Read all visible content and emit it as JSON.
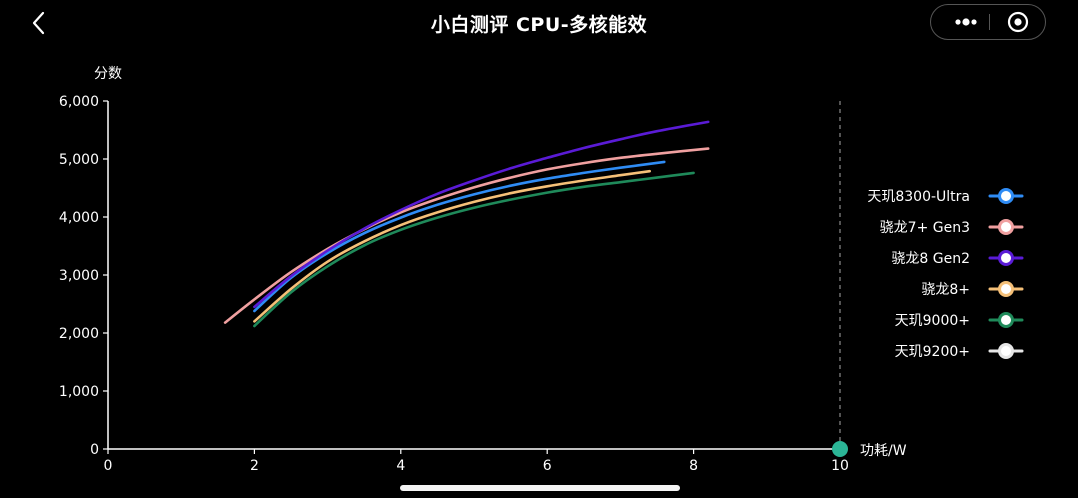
{
  "nav": {
    "back_icon": "chevron-left-icon",
    "title": "小白测评 CPU-多核能效",
    "more_icon": "more-dots-icon",
    "close_icon": "target-close-icon"
  },
  "chart_data": {
    "type": "line",
    "title": "",
    "xlabel": "功耗/W",
    "ylabel": "分数",
    "xlim": [
      0,
      10
    ],
    "ylim": [
      0,
      6000
    ],
    "x_ticks": [
      "0",
      "2",
      "4",
      "6",
      "8",
      "10"
    ],
    "y_ticks": [
      "0",
      "1,000",
      "2,000",
      "3,000",
      "4,000",
      "5,000",
      "6,000"
    ],
    "grid": false,
    "legend_position": "right",
    "x_marker": 10,
    "series": [
      {
        "name": "天玑8300-Ultra",
        "color": "#2f8cf5",
        "x": [
          2.0,
          2.5,
          3.0,
          3.5,
          4.0,
          4.5,
          5.0,
          5.5,
          6.0,
          6.5,
          7.0,
          7.6
        ],
        "y": [
          2380,
          2950,
          3380,
          3720,
          3990,
          4210,
          4390,
          4540,
          4660,
          4760,
          4850,
          4950
        ]
      },
      {
        "name": "骁龙7+ Gen3",
        "color": "#f0a0a0",
        "x": [
          1.6,
          2.0,
          2.5,
          3.0,
          3.5,
          4.0,
          4.5,
          5.0,
          5.5,
          6.0,
          6.5,
          7.0,
          7.5,
          8.2
        ],
        "y": [
          2180,
          2580,
          3050,
          3450,
          3790,
          4080,
          4310,
          4510,
          4680,
          4820,
          4930,
          5020,
          5090,
          5180
        ]
      },
      {
        "name": "骁龙8 Gen2",
        "color": "#5a1bd6",
        "x": [
          2.0,
          2.5,
          3.0,
          3.5,
          4.0,
          4.5,
          5.0,
          5.5,
          6.0,
          6.5,
          7.0,
          7.5,
          8.2
        ],
        "y": [
          2450,
          2980,
          3420,
          3800,
          4120,
          4400,
          4630,
          4840,
          5020,
          5190,
          5340,
          5480,
          5640
        ]
      },
      {
        "name": "骁龙8+",
        "color": "#f5c078",
        "x": [
          2.0,
          2.5,
          3.0,
          3.5,
          4.0,
          4.5,
          5.0,
          5.5,
          6.0,
          6.5,
          7.0,
          7.4
        ],
        "y": [
          2200,
          2760,
          3230,
          3580,
          3860,
          4080,
          4260,
          4410,
          4530,
          4630,
          4720,
          4790
        ]
      },
      {
        "name": "天玑9000+",
        "color": "#1f8a5a",
        "x": [
          2.0,
          2.5,
          3.0,
          3.5,
          4.0,
          4.5,
          5.0,
          5.5,
          6.0,
          6.5,
          7.0,
          7.5,
          8.0
        ],
        "y": [
          2120,
          2700,
          3150,
          3510,
          3780,
          3990,
          4160,
          4300,
          4420,
          4520,
          4600,
          4680,
          4760
        ]
      },
      {
        "name": "天玑9200+",
        "color": "#e6e6e6",
        "x": [],
        "y": []
      }
    ]
  }
}
